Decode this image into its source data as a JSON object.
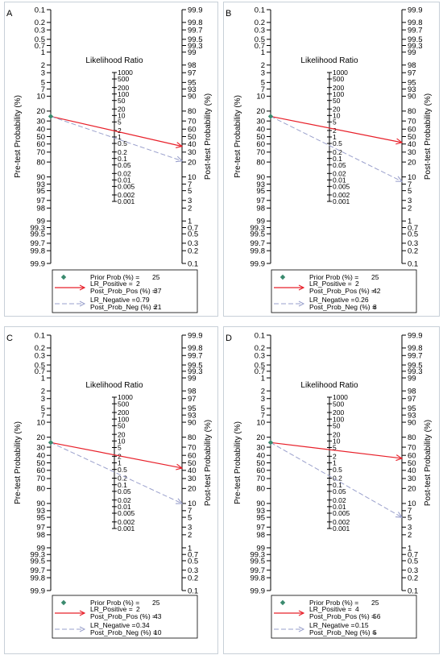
{
  "chart_data": [
    {
      "type": "fagan-nomogram",
      "panel": "A",
      "left_axis_label": "Pre-test Probability (%)",
      "right_axis_label": "Post-test Probability (%)",
      "middle_axis_label": "Likelihood Ratio",
      "left_ticks": [
        "0.1",
        "0.2",
        "0.3",
        "0.5",
        "0.7",
        "1",
        "2",
        "3",
        "5",
        "7",
        "10",
        "20",
        "30",
        "40",
        "50",
        "60",
        "70",
        "80",
        "90",
        "93",
        "95",
        "97",
        "98",
        "99",
        "99.3",
        "99.5",
        "99.7",
        "99.8",
        "99.9"
      ],
      "right_ticks": [
        "99.9",
        "99.8",
        "99.7",
        "99.5",
        "99.3",
        "99",
        "98",
        "97",
        "95",
        "93",
        "90",
        "80",
        "70",
        "60",
        "50",
        "40",
        "30",
        "20",
        "10",
        "7",
        "5",
        "3",
        "2",
        "1",
        "0.7",
        "0.5",
        "0.3",
        "0.2",
        "0.1"
      ],
      "lr_ticks": [
        "1000",
        "500",
        "200",
        "100",
        "50",
        "20",
        "10",
        "5",
        "2",
        "1",
        "0.5",
        "0.2",
        "0.1",
        "0.05",
        "0.02",
        "0.01",
        "0.005",
        "0.002",
        "0.001"
      ],
      "series": [
        {
          "label": "LR_Positive",
          "lr": 2,
          "pre": 25,
          "post": 37
        },
        {
          "label": "LR_Negative",
          "lr": 0.79,
          "pre": 25,
          "post": 21
        }
      ],
      "legend": {
        "prior_label": "Prior Prob (%) =",
        "prior_value": "25",
        "pos_lr_label": "LR_Positive =",
        "pos_lr_value": "2",
        "pos_post_label": "Post_Prob_Pos (%) =",
        "pos_post_value": "37",
        "neg_lr_label": "LR_Negative =",
        "neg_lr_value": "0.79",
        "neg_post_label": "Post_Prob_Neg (%) =",
        "neg_post_value": "21"
      },
      "colors": {
        "positive": "#e8202a",
        "negative": "#9aa0cc",
        "prior": "#3a8a6e"
      }
    },
    {
      "type": "fagan-nomogram",
      "panel": "B",
      "left_axis_label": "Pre-test Probability (%)",
      "right_axis_label": "Post-test Probability (%)",
      "middle_axis_label": "Likelihood Ratio",
      "left_ticks": [
        "0.1",
        "0.2",
        "0.3",
        "0.5",
        "0.7",
        "1",
        "2",
        "3",
        "5",
        "7",
        "10",
        "20",
        "30",
        "40",
        "50",
        "60",
        "70",
        "80",
        "90",
        "93",
        "95",
        "97",
        "98",
        "99",
        "99.3",
        "99.5",
        "99.7",
        "99.8",
        "99.9"
      ],
      "right_ticks": [
        "99.9",
        "99.8",
        "99.7",
        "99.5",
        "99.3",
        "99",
        "98",
        "97",
        "95",
        "93",
        "90",
        "80",
        "70",
        "60",
        "50",
        "40",
        "30",
        "20",
        "10",
        "7",
        "5",
        "3",
        "2",
        "1",
        "0.7",
        "0.5",
        "0.3",
        "0.2",
        "0.1"
      ],
      "lr_ticks": [
        "1000",
        "500",
        "200",
        "100",
        "50",
        "20",
        "10",
        "5",
        "2",
        "1",
        "0.5",
        "0.2",
        "0.1",
        "0.05",
        "0.02",
        "0.01",
        "0.005",
        "0.002",
        "0.001"
      ],
      "series": [
        {
          "label": "LR_Positive",
          "lr": 2,
          "pre": 25,
          "post": 42
        },
        {
          "label": "LR_Negative",
          "lr": 0.26,
          "pre": 25,
          "post": 8
        }
      ],
      "legend": {
        "prior_label": "Prior Prob (%) =",
        "prior_value": "25",
        "pos_lr_label": "LR_Positive =",
        "pos_lr_value": "2",
        "pos_post_label": "Post_Prob_Pos (%) =",
        "pos_post_value": "42",
        "neg_lr_label": "LR_Negative =",
        "neg_lr_value": "0.26",
        "neg_post_label": "Post_Prob_Neg (%) =",
        "neg_post_value": "8"
      },
      "colors": {
        "positive": "#e8202a",
        "negative": "#9aa0cc",
        "prior": "#3a8a6e"
      }
    },
    {
      "type": "fagan-nomogram",
      "panel": "C",
      "left_axis_label": "Pre-test Probability (%)",
      "right_axis_label": "Post-test Probability (%)",
      "middle_axis_label": "Likelihood Ratio",
      "left_ticks": [
        "0.1",
        "0.2",
        "0.3",
        "0.5",
        "0.7",
        "1",
        "2",
        "3",
        "5",
        "7",
        "10",
        "20",
        "30",
        "40",
        "50",
        "60",
        "70",
        "80",
        "90",
        "93",
        "95",
        "97",
        "98",
        "99",
        "99.3",
        "99.5",
        "99.7",
        "99.8",
        "99.9"
      ],
      "right_ticks": [
        "99.9",
        "99.8",
        "99.7",
        "99.5",
        "99.3",
        "99",
        "98",
        "97",
        "95",
        "93",
        "90",
        "80",
        "70",
        "60",
        "50",
        "40",
        "30",
        "20",
        "10",
        "7",
        "5",
        "3",
        "2",
        "1",
        "0.7",
        "0.5",
        "0.3",
        "0.2",
        "0.1"
      ],
      "lr_ticks": [
        "1000",
        "500",
        "200",
        "100",
        "50",
        "20",
        "10",
        "5",
        "2",
        "1",
        "0.5",
        "0.2",
        "0.1",
        "0.05",
        "0.02",
        "0.01",
        "0.005",
        "0.002",
        "0.001"
      ],
      "series": [
        {
          "label": "LR_Positive",
          "lr": 2,
          "pre": 25,
          "post": 43
        },
        {
          "label": "LR_Negative",
          "lr": 0.34,
          "pre": 25,
          "post": 10
        }
      ],
      "legend": {
        "prior_label": "Prior Prob (%) =",
        "prior_value": "25",
        "pos_lr_label": "LR_Positive =",
        "pos_lr_value": "2",
        "pos_post_label": "Post_Prob_Pos (%) =",
        "pos_post_value": "43",
        "neg_lr_label": "LR_Negative =",
        "neg_lr_value": "0.34",
        "neg_post_label": "Post_Prob_Neg (%) =",
        "neg_post_value": "10"
      },
      "colors": {
        "positive": "#e8202a",
        "negative": "#9aa0cc",
        "prior": "#3a8a6e"
      }
    },
    {
      "type": "fagan-nomogram",
      "panel": "D",
      "left_axis_label": "Pre-test Probability (%)",
      "right_axis_label": "Post-test Probability (%)",
      "middle_axis_label": "Likelihood Ratio",
      "left_ticks": [
        "0.1",
        "0.2",
        "0.3",
        "0.5",
        "0.7",
        "1",
        "2",
        "3",
        "5",
        "7",
        "10",
        "20",
        "30",
        "40",
        "50",
        "60",
        "70",
        "80",
        "90",
        "93",
        "95",
        "97",
        "98",
        "99",
        "99.3",
        "99.5",
        "99.7",
        "99.8",
        "99.9"
      ],
      "right_ticks": [
        "99.9",
        "99.8",
        "99.7",
        "99.5",
        "99.3",
        "99",
        "98",
        "97",
        "95",
        "93",
        "90",
        "80",
        "70",
        "60",
        "50",
        "40",
        "30",
        "20",
        "10",
        "7",
        "5",
        "3",
        "2",
        "1",
        "0.7",
        "0.5",
        "0.3",
        "0.2",
        "0.1"
      ],
      "lr_ticks": [
        "1000",
        "500",
        "200",
        "100",
        "50",
        "20",
        "10",
        "5",
        "2",
        "1",
        "0.5",
        "0.2",
        "0.1",
        "0.05",
        "0.02",
        "0.01",
        "0.005",
        "0.002",
        "0.001"
      ],
      "series": [
        {
          "label": "LR_Positive",
          "lr": 4,
          "pre": 25,
          "post": 56
        },
        {
          "label": "LR_Negative",
          "lr": 0.15,
          "pre": 25,
          "post": 5
        }
      ],
      "legend": {
        "prior_label": "Prior Prob (%) =",
        "prior_value": "25",
        "pos_lr_label": "LR_Positive =",
        "pos_lr_value": "4",
        "pos_post_label": "Post_Prob_Pos (%) =",
        "pos_post_value": "56",
        "neg_lr_label": "LR_Negative =",
        "neg_lr_value": "0.15",
        "neg_post_label": "Post_Prob_Neg (%) =",
        "neg_post_value": "5"
      },
      "colors": {
        "positive": "#e8202a",
        "negative": "#9aa0cc",
        "prior": "#3a8a6e"
      }
    }
  ]
}
